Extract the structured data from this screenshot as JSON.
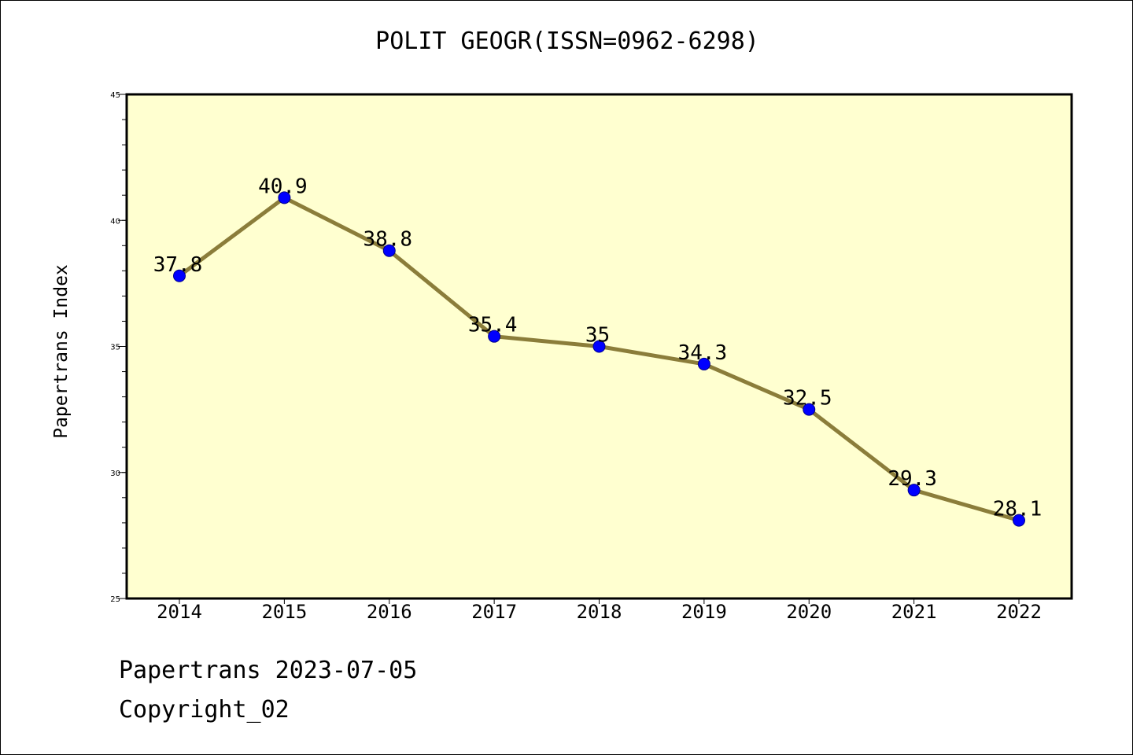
{
  "chart_data": {
    "type": "line",
    "title": "POLIT GEOGR(ISSN=0962-6298)",
    "xlabel": "",
    "ylabel": "Papertrans Index",
    "categories": [
      "2014",
      "2015",
      "2016",
      "2017",
      "2018",
      "2019",
      "2020",
      "2021",
      "2022"
    ],
    "series": [
      {
        "values": [
          37.8,
          40.9,
          38.8,
          35.4,
          35,
          34.3,
          32.5,
          29.3,
          28.1
        ],
        "labels": [
          "37.8",
          "40.9",
          "38.8",
          "35.4",
          "35",
          "34.3",
          "32.5",
          "29.3",
          "28.1"
        ]
      }
    ],
    "ylim": [
      25,
      45
    ],
    "yticks": [
      "25",
      "30",
      "35",
      "40",
      "45"
    ],
    "grid": false,
    "colors": {
      "plot_background": "#FFFFD0",
      "line": "#8B7D3A",
      "marker": "#0000FF",
      "marker_edge": "#00008B",
      "axis": "#000000"
    }
  },
  "footer": {
    "date_line": "Papertrans 2023-07-05",
    "copyright_line": "Copyright_02"
  }
}
